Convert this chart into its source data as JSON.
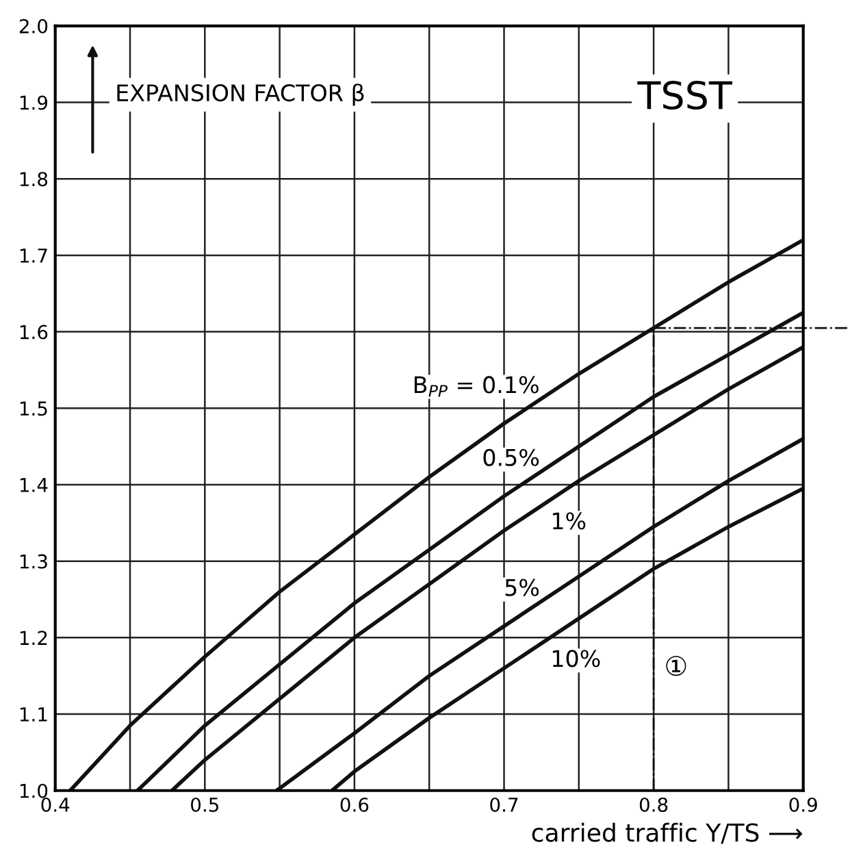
{
  "chart_data": {
    "type": "line",
    "title": "TSST",
    "ylabel": "EXPANSION FACTOR β",
    "xlabel": "carried traffic Y/TS ⟶",
    "series": [
      {
        "name": "B$_{PP}$ = 0.1%",
        "color": "#111111",
        "x": [
          0.41,
          0.45,
          0.5,
          0.55,
          0.6,
          0.65,
          0.7,
          0.75,
          0.8,
          0.85,
          0.9
        ],
        "values": [
          1.0,
          1.085,
          1.175,
          1.26,
          1.335,
          1.41,
          1.48,
          1.545,
          1.605,
          1.665,
          1.72
        ]
      },
      {
        "name": "0.5%",
        "color": "#111111",
        "x": [
          0.455,
          0.5,
          0.55,
          0.6,
          0.65,
          0.7,
          0.75,
          0.8,
          0.85,
          0.9
        ],
        "values": [
          1.0,
          1.085,
          1.165,
          1.245,
          1.315,
          1.385,
          1.45,
          1.515,
          1.57,
          1.625
        ]
      },
      {
        "name": "1%",
        "color": "#111111",
        "x": [
          0.478,
          0.5,
          0.55,
          0.6,
          0.65,
          0.7,
          0.75,
          0.8,
          0.85,
          0.9
        ],
        "values": [
          1.0,
          1.04,
          1.12,
          1.2,
          1.27,
          1.34,
          1.405,
          1.465,
          1.525,
          1.58
        ]
      },
      {
        "name": "5%",
        "color": "#111111",
        "x": [
          0.548,
          0.6,
          0.65,
          0.7,
          0.75,
          0.8,
          0.85,
          0.9
        ],
        "values": [
          1.0,
          1.075,
          1.15,
          1.215,
          1.28,
          1.345,
          1.405,
          1.46
        ]
      },
      {
        "name": "10%",
        "color": "#111111",
        "x": [
          0.585,
          0.6,
          0.65,
          0.7,
          0.75,
          0.8,
          0.85,
          0.9
        ],
        "values": [
          1.0,
          1.025,
          1.095,
          1.16,
          1.225,
          1.29,
          1.345,
          1.395
        ]
      }
    ],
    "xlim": [
      0.4,
      0.9
    ],
    "ylim": [
      1.0,
      2.0
    ],
    "xticks": [
      0.4,
      {
        "value": 0.45,
        "label": null
      },
      0.5,
      {
        "value": 0.55,
        "label": null
      },
      0.6,
      {
        "value": 0.65,
        "label": null
      },
      0.7,
      {
        "value": 0.75,
        "label": null
      },
      0.8,
      {
        "value": 0.85,
        "label": null
      },
      0.9
    ],
    "yticks": [
      {
        "value": 1.0,
        "label": "1.0"
      },
      1.1,
      1.2,
      1.3,
      1.4,
      1.5,
      1.6,
      1.7,
      1.8,
      1.9,
      {
        "value": 2.0,
        "label": "2.0"
      }
    ],
    "ref_lines": [
      {
        "axis": "x",
        "value": 0.8,
        "line_style": "dashdot"
      },
      {
        "axis": "y",
        "value": 1.605,
        "line_style": "dashdot"
      }
    ],
    "annotations": [
      {
        "text": "①",
        "x": 0.8,
        "y": 1.16
      }
    ],
    "grid": true,
    "legend": false,
    "marker": "none",
    "line_style": "solid"
  }
}
